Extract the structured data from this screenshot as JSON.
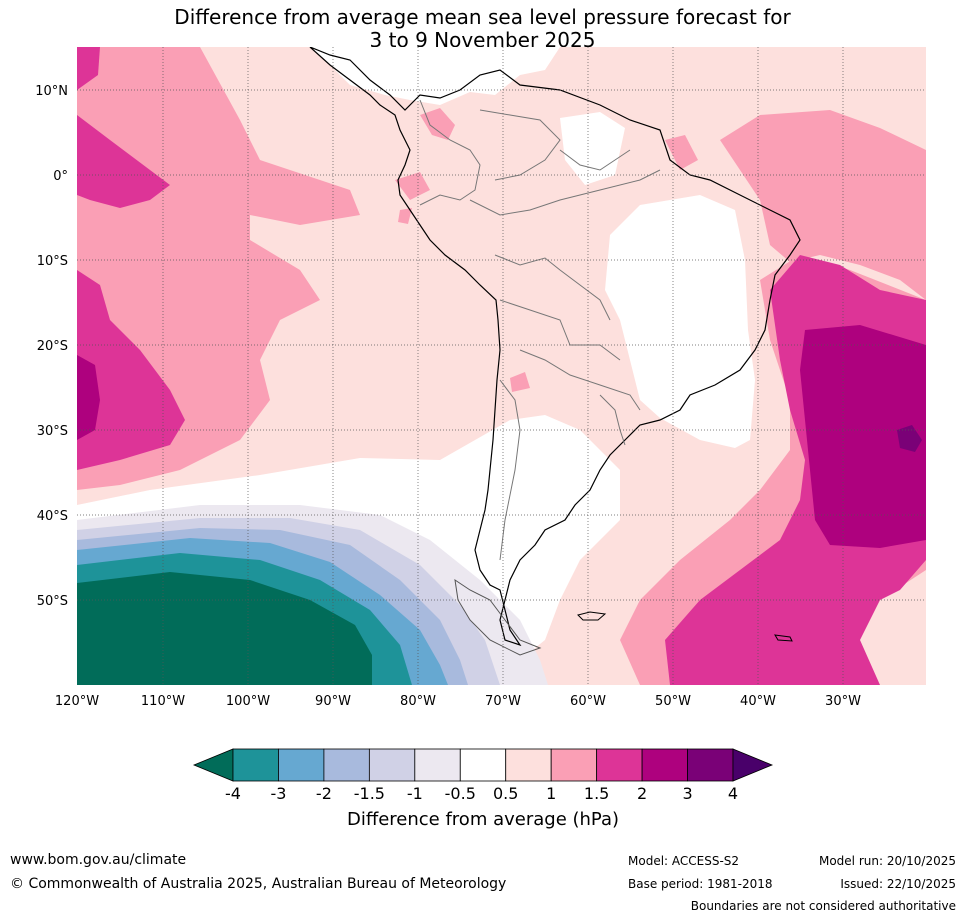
{
  "title": {
    "line1": "Difference from average mean sea level pressure forecast for",
    "line2": "3 to 9 November 2025"
  },
  "lat_labels": [
    "10°N",
    "0°",
    "10°S",
    "20°S",
    "30°S",
    "40°S",
    "50°S"
  ],
  "lon_labels": [
    "120°W",
    "110°W",
    "100°W",
    "90°W",
    "80°W",
    "70°W",
    "60°W",
    "50°W",
    "40°W",
    "30°W"
  ],
  "colorbar": {
    "ticks": [
      "-4",
      "-3",
      "-2",
      "-1.5",
      "-1",
      "-0.5",
      "0.5",
      "1",
      "1.5",
      "2",
      "3",
      "4"
    ],
    "colors": [
      "#1e9399",
      "#66a8d1",
      "#a8badd",
      "#d0d1e6",
      "#ece8f0",
      "#ffffff",
      "#fde0dd",
      "#fa9fb5",
      "#dd3497",
      "#ae017e",
      "#7a0177"
    ],
    "under_color": "#016c59",
    "over_color": "#49006a",
    "label": "Difference from average (hPa)"
  },
  "footer": {
    "url": "www.bom.gov.au/climate",
    "copyright": "© Commonwealth of Australia 2025, Australian Bureau of Meteorology",
    "model": "Model: ACCESS-S2",
    "base_period": "Base period: 1981-2018",
    "model_run": "Model run: 20/10/2025",
    "issued": "Issued: 22/10/2025",
    "disclaimer": "Boundaries are not considered authoritative"
  }
}
